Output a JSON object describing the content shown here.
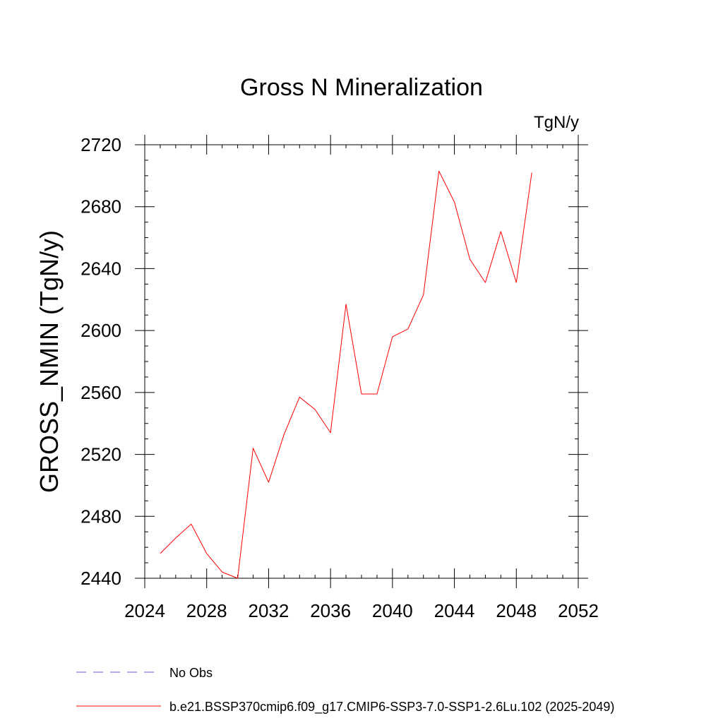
{
  "chart_data": {
    "type": "line",
    "title": "Gross N Mineralization",
    "units_label": "TgN/y",
    "xlabel": "",
    "ylabel": "GROSS_NMIN  (TgN/y)",
    "xlim": [
      2024,
      2052
    ],
    "ylim": [
      2440,
      2720
    ],
    "x_ticks": [
      2024,
      2028,
      2032,
      2036,
      2040,
      2044,
      2048,
      2052
    ],
    "y_ticks": [
      2440,
      2480,
      2520,
      2560,
      2600,
      2640,
      2680,
      2720
    ],
    "x_tick_labels": [
      "2024",
      "2028",
      "2032",
      "2036",
      "2040",
      "2044",
      "2048",
      "2052"
    ],
    "y_tick_labels": [
      "2440",
      "2480",
      "2520",
      "2560",
      "2600",
      "2640",
      "2680",
      "2720"
    ],
    "x_minor_step": 1,
    "y_minor_step": 10,
    "series": [
      {
        "name": "b.e21.BSSP370cmip6.f09_g17.CMIP6-SSP3-7.0-SSP1-2.6Lu.102 (2025-2049)",
        "color": "#ff0000",
        "x": [
          2025,
          2026,
          2027,
          2028,
          2029,
          2030,
          2031,
          2032,
          2033,
          2034,
          2035,
          2036,
          2037,
          2038,
          2039,
          2040,
          2041,
          2042,
          2043,
          2044,
          2045,
          2046,
          2047,
          2048,
          2049
        ],
        "values": [
          2456,
          2466,
          2475,
          2456,
          2444,
          2440,
          2524,
          2502,
          2533,
          2557,
          2549,
          2534,
          2617,
          2559,
          2559,
          2596,
          2601,
          2623,
          2703,
          2683,
          2646,
          2631,
          2664,
          2631,
          2702
        ]
      }
    ],
    "legend": [
      {
        "label": "No Obs",
        "color": "#6a5acd",
        "style": "dashed"
      },
      {
        "label": "b.e21.BSSP370cmip6.f09_g17.CMIP6-SSP3-7.0-SSP1-2.6Lu.102 (2025-2049)",
        "color": "#ff0000",
        "style": "solid"
      }
    ],
    "legend_position": "bottom-left",
    "grid": false
  }
}
